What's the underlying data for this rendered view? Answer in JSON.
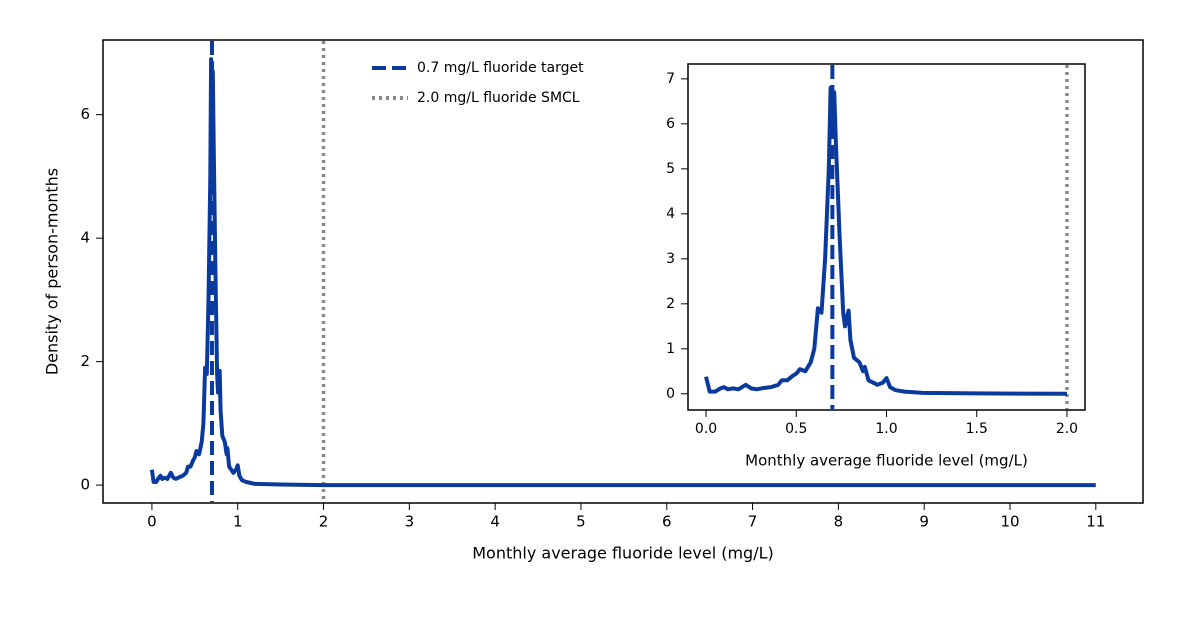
{
  "chart_data": [
    {
      "type": "line",
      "x_label": "Monthly average fluoride level (mg/L)",
      "y_label": "Density of person-months",
      "xlim": [
        -0.57,
        11.55
      ],
      "ylim": [
        -0.29,
        7.21
      ],
      "xticks": [
        0,
        1,
        2,
        3,
        4,
        5,
        6,
        7,
        8,
        9,
        10,
        11
      ],
      "yticks": [
        0,
        2,
        4,
        6
      ],
      "series": [
        {
          "color": "#0b3a9e",
          "x": [
            0,
            0.02,
            0.05,
            0.08,
            0.1,
            0.12,
            0.15,
            0.18,
            0.22,
            0.25,
            0.28,
            0.32,
            0.36,
            0.4,
            0.42,
            0.45,
            0.48,
            0.5,
            0.52,
            0.55,
            0.58,
            0.6,
            0.62,
            0.64,
            0.66,
            0.68,
            0.69,
            0.7,
            0.71,
            0.72,
            0.74,
            0.76,
            0.77,
            0.79,
            0.8,
            0.82,
            0.85,
            0.87,
            0.88,
            0.9,
            0.95,
            0.98,
            1,
            1.02,
            1.05,
            1.1,
            1.2,
            1.5,
            2,
            5,
            11
          ],
          "values": [
            0.25,
            0.05,
            0.05,
            0.12,
            0.15,
            0.1,
            0.12,
            0.1,
            0.2,
            0.12,
            0.1,
            0.13,
            0.15,
            0.2,
            0.3,
            0.3,
            0.4,
            0.45,
            0.55,
            0.5,
            0.7,
            1.0,
            1.9,
            1.8,
            3.0,
            5.0,
            6.9,
            6.0,
            6.7,
            5.5,
            3.5,
            1.8,
            1.5,
            1.85,
            1.2,
            0.8,
            0.7,
            0.5,
            0.6,
            0.3,
            0.2,
            0.25,
            0.32,
            0.15,
            0.08,
            0.05,
            0.02,
            0.01,
            0,
            0,
            0
          ]
        }
      ],
      "reference_lines": [
        {
          "name": "0.7 mg/L fluoride target",
          "value": 0.7,
          "color": "#0b3a9e",
          "style": "dashed"
        },
        {
          "name": "2.0 mg/L fluoride SMCL",
          "value": 2.0,
          "color": "#888888",
          "style": "dotted"
        }
      ]
    },
    {
      "type": "line",
      "x_label": "Monthly average fluoride level (mg/L)",
      "xlim": [
        -0.1,
        2.1
      ],
      "ylim": [
        -0.36,
        7.33
      ],
      "xticks": [
        {
          "value": 0,
          "label": "0.0"
        },
        0.5,
        {
          "value": 1,
          "label": "1.0"
        },
        1.5,
        {
          "value": 2,
          "label": "2.0"
        }
      ],
      "yticks": [
        0,
        1,
        2,
        3,
        4,
        5,
        6,
        7
      ],
      "series": [
        {
          "color": "#0b3a9e",
          "x": [
            0,
            0.02,
            0.05,
            0.08,
            0.1,
            0.12,
            0.15,
            0.18,
            0.22,
            0.25,
            0.28,
            0.32,
            0.36,
            0.4,
            0.42,
            0.45,
            0.48,
            0.5,
            0.52,
            0.55,
            0.58,
            0.6,
            0.62,
            0.64,
            0.66,
            0.68,
            0.69,
            0.7,
            0.71,
            0.72,
            0.74,
            0.76,
            0.77,
            0.79,
            0.8,
            0.82,
            0.85,
            0.87,
            0.88,
            0.9,
            0.95,
            0.98,
            1,
            1.02,
            1.05,
            1.1,
            1.2,
            1.5,
            2
          ],
          "values": [
            0.38,
            0.05,
            0.05,
            0.12,
            0.15,
            0.1,
            0.12,
            0.1,
            0.2,
            0.12,
            0.1,
            0.13,
            0.15,
            0.2,
            0.3,
            0.3,
            0.4,
            0.45,
            0.55,
            0.5,
            0.7,
            1.0,
            1.9,
            1.8,
            3.0,
            5.0,
            6.8,
            6.0,
            6.7,
            5.5,
            3.5,
            1.8,
            1.5,
            1.85,
            1.2,
            0.8,
            0.7,
            0.5,
            0.6,
            0.3,
            0.2,
            0.25,
            0.35,
            0.15,
            0.08,
            0.05,
            0.02,
            0.01,
            0
          ]
        }
      ],
      "reference_lines": [
        {
          "value": 0.7,
          "color": "#0b3a9e",
          "style": "dashed"
        },
        {
          "value": 2.0,
          "color": "#888888",
          "style": "dotted"
        }
      ]
    }
  ]
}
